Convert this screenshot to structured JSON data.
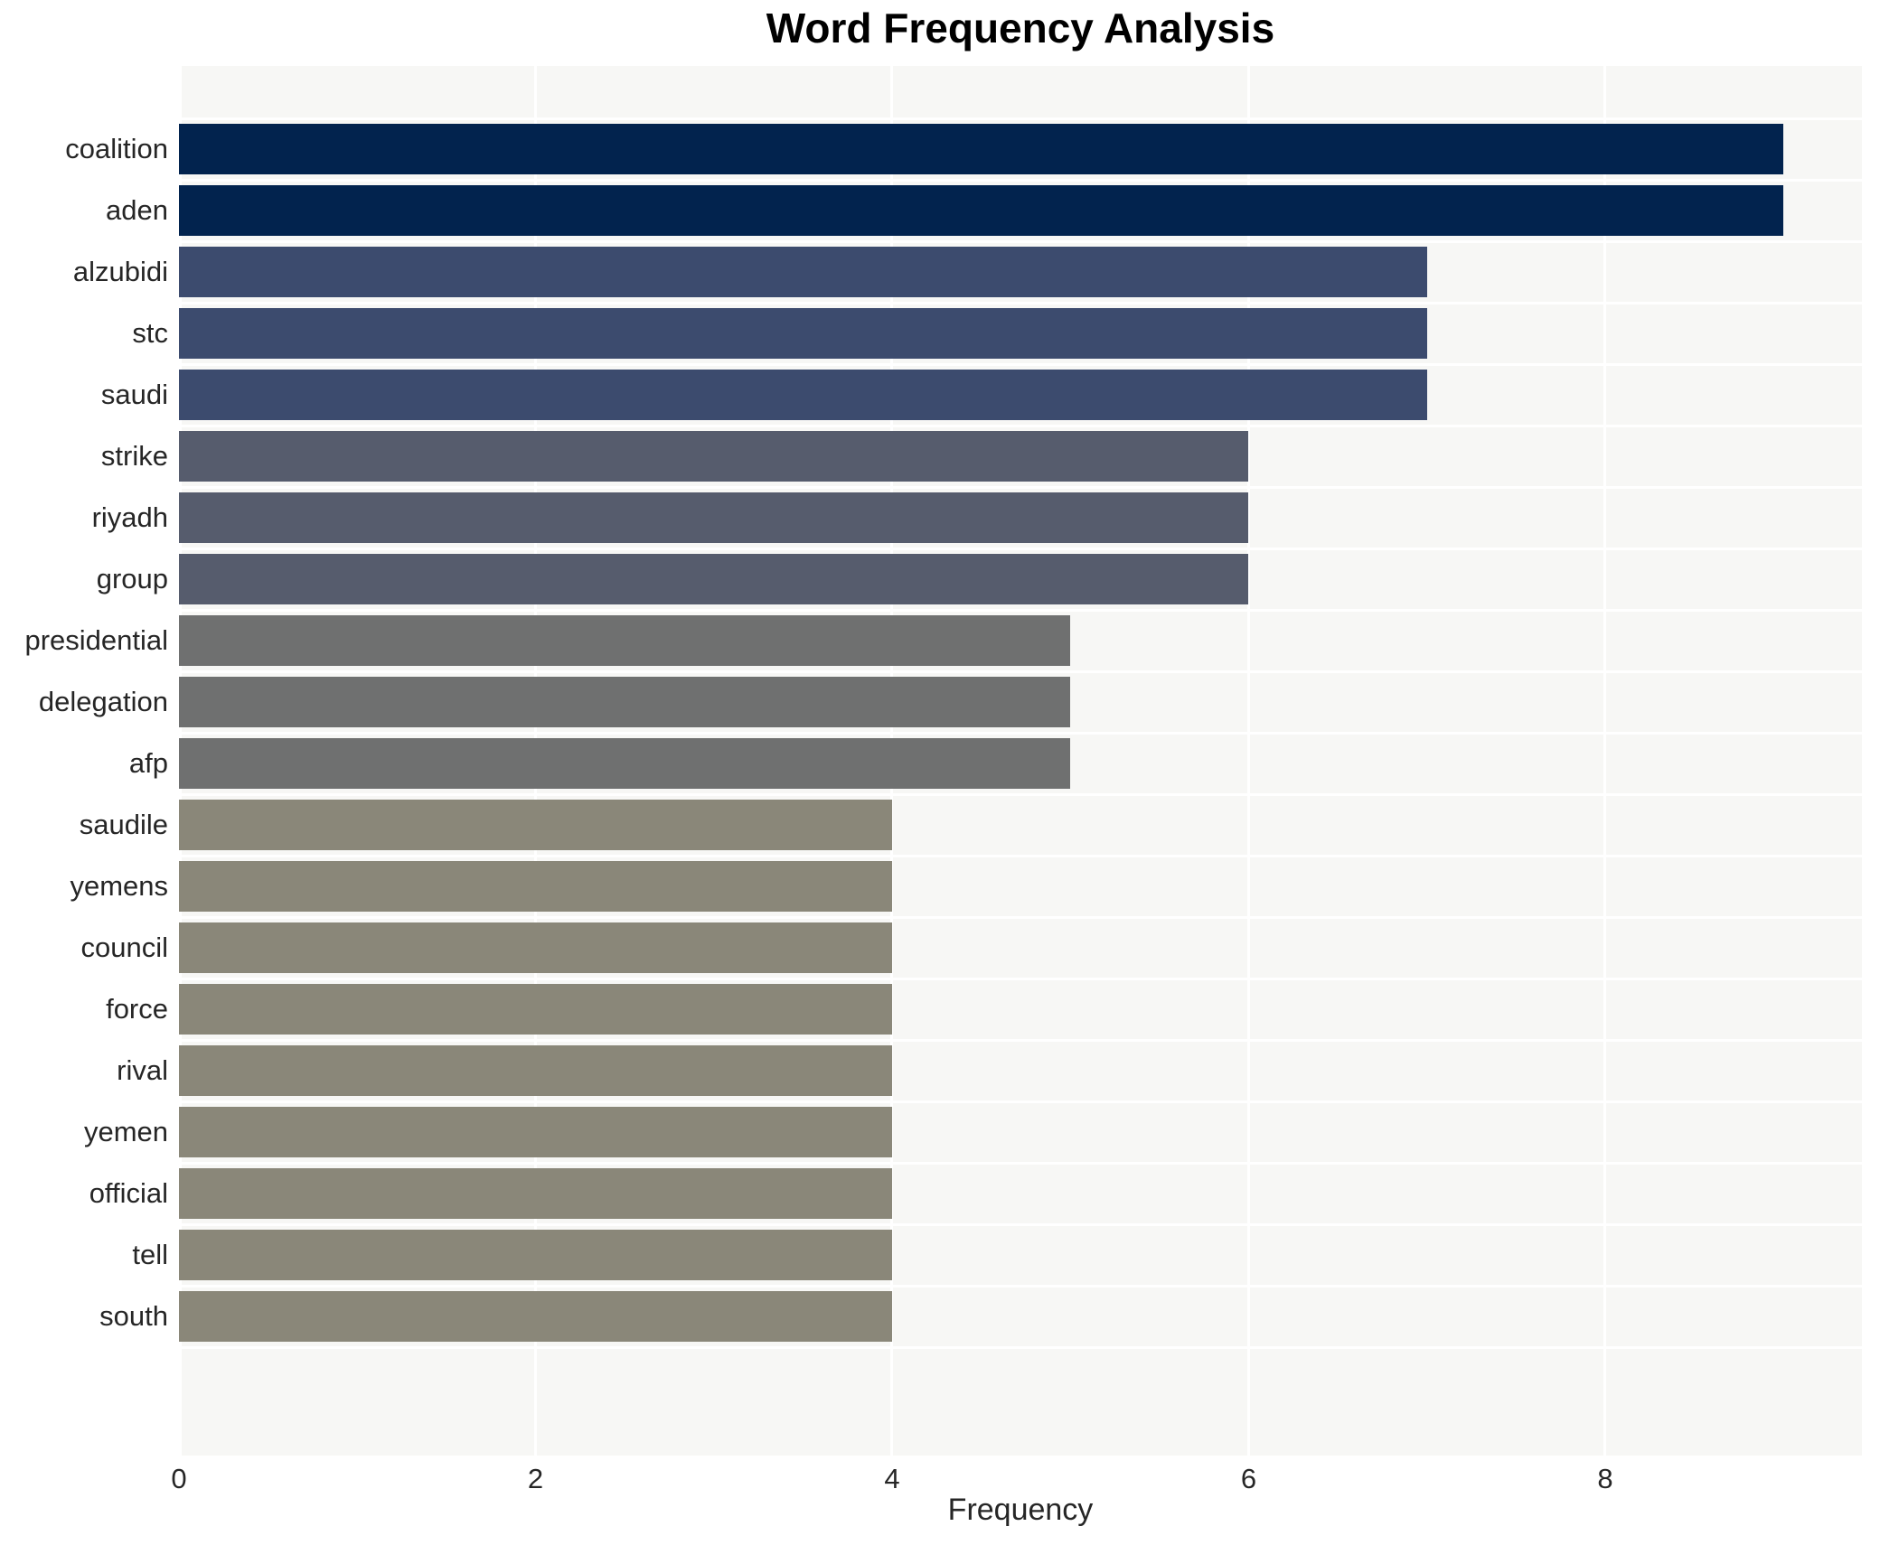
{
  "chart_data": {
    "type": "bar",
    "orientation": "horizontal",
    "title": "Word Frequency Analysis",
    "xlabel": "Frequency",
    "ylabel": "",
    "categories": [
      "coalition",
      "aden",
      "alzubidi",
      "stc",
      "saudi",
      "strike",
      "riyadh",
      "group",
      "presidential",
      "delegation",
      "afp",
      "saudile",
      "yemens",
      "council",
      "force",
      "rival",
      "yemen",
      "official",
      "tell",
      "south"
    ],
    "values": [
      9,
      9,
      7,
      7,
      7,
      6,
      6,
      6,
      5,
      5,
      5,
      4,
      4,
      4,
      4,
      4,
      4,
      4,
      4,
      4
    ],
    "bar_colors": [
      "#02234e",
      "#02234e",
      "#3c4b6e",
      "#3c4b6e",
      "#3c4b6e",
      "#565c6d",
      "#565c6d",
      "#565c6d",
      "#6f7070",
      "#6f7070",
      "#6f7070",
      "#8a8779",
      "#8a8779",
      "#8a8779",
      "#8a8779",
      "#8a8779",
      "#8a8779",
      "#8a8779",
      "#8a8779",
      "#8a8779"
    ],
    "value_color_map": {
      "9": "#02234e",
      "7": "#3c4b6e",
      "6": "#565c6d",
      "5": "#6f7070",
      "4": "#8a8779"
    },
    "xticks": [
      0,
      2,
      4,
      6,
      8
    ],
    "xlim": [
      0,
      9.44
    ],
    "grid": true,
    "grid_color": "#ffffff",
    "plot_bg_color": "#f7f7f5",
    "outer_bg_color": "#ffffff",
    "text_color": "#262626",
    "legend": null
  }
}
